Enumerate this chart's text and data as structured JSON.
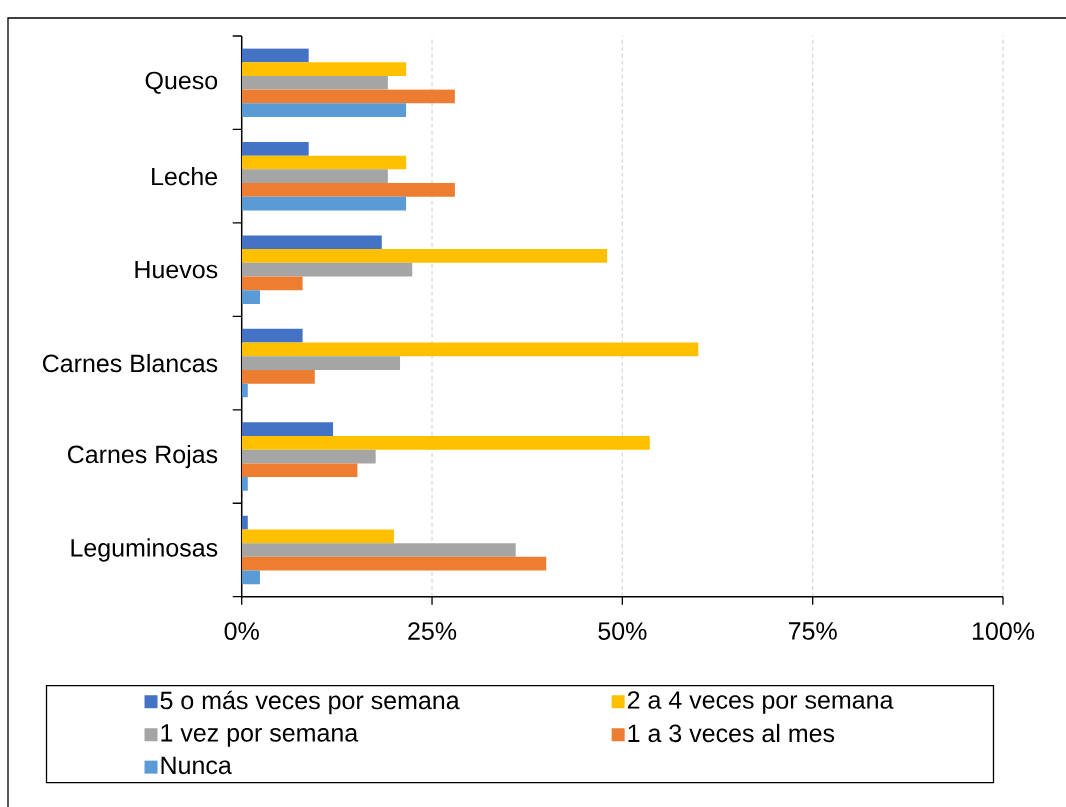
{
  "chart_data": {
    "type": "bar",
    "orientation": "horizontal",
    "categories": [
      "Queso",
      "Leche",
      "Huevos",
      "Carnes Blancas",
      "Carnes Rojas",
      "Leguminosas"
    ],
    "series": [
      {
        "name": "5 o más veces por semana",
        "color": "#4472c4",
        "values": [
          8.8,
          8.8,
          18.4,
          8.0,
          12.0,
          0.8
        ]
      },
      {
        "name": "2 a 4 veces por semana",
        "color": "#ffc000",
        "values": [
          21.6,
          21.6,
          48.0,
          60.0,
          53.6,
          20.0
        ]
      },
      {
        "name": "1 vez por semana",
        "color": "#a5a5a5",
        "values": [
          19.2,
          19.2,
          22.4,
          20.8,
          17.6,
          36.0
        ]
      },
      {
        "name": "1 a 3 veces al mes",
        "color": "#ed7d31",
        "values": [
          28.0,
          28.0,
          8.0,
          9.6,
          15.2,
          40.0
        ]
      },
      {
        "name": "Nunca",
        "color": "#5b9bd5",
        "values": [
          21.6,
          21.6,
          2.4,
          0.8,
          0.8,
          2.4
        ]
      }
    ],
    "xlim": [
      0,
      100
    ],
    "xticks": [
      {
        "value": 0,
        "label": "0%"
      },
      {
        "value": 25,
        "label": "25%"
      },
      {
        "value": 50,
        "label": "50%"
      },
      {
        "value": 75,
        "label": "75%"
      },
      {
        "value": 100,
        "label": "100%"
      }
    ],
    "grid": "x",
    "legend": "bottom"
  }
}
